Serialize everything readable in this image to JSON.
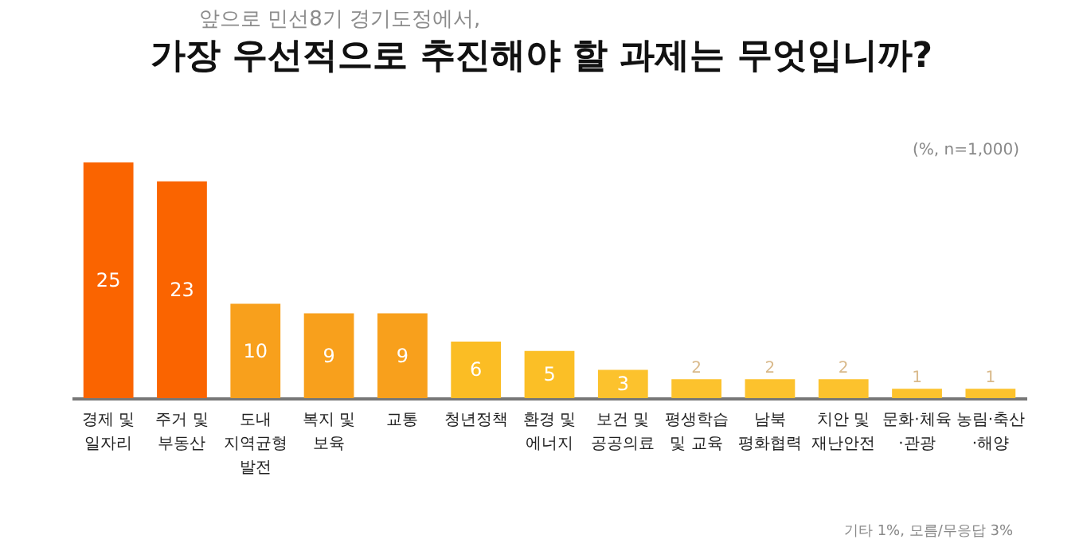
{
  "chart_data": {
    "type": "bar",
    "subtitle": "앞으로 민선8기 경기도정에서,",
    "title": "가장 우선적으로 추진해야 할 과제는 무엇입니까?",
    "categories": [
      "경제 및\n일자리",
      "주거 및\n부동산",
      "도내\n지역균형\n발전",
      "복지 및\n보육",
      "교통",
      "청년정책",
      "환경 및\n에너지",
      "보건 및\n공공의료",
      "평생학습\n및 교육",
      "남북\n평화협력",
      "치안 및\n재난안전",
      "문화·체육\n·관광",
      "농림·축산\n·해양"
    ],
    "values": [
      25,
      23,
      10,
      9,
      9,
      6,
      5,
      3,
      2,
      2,
      2,
      1,
      1
    ],
    "colors": [
      "#fa6400",
      "#fa6400",
      "#f8a01c",
      "#f8a01c",
      "#f8a01c",
      "#fbbd24",
      "#fbbf26",
      "#fcc22d",
      "#fcc22d",
      "#fcc22d",
      "#fcc22d",
      "#fcc22d",
      "#fcc22d"
    ],
    "data_labels": true,
    "annotations": [
      "(%, n=1,000)",
      "기타 1%, 모름/무응답 3%"
    ]
  }
}
